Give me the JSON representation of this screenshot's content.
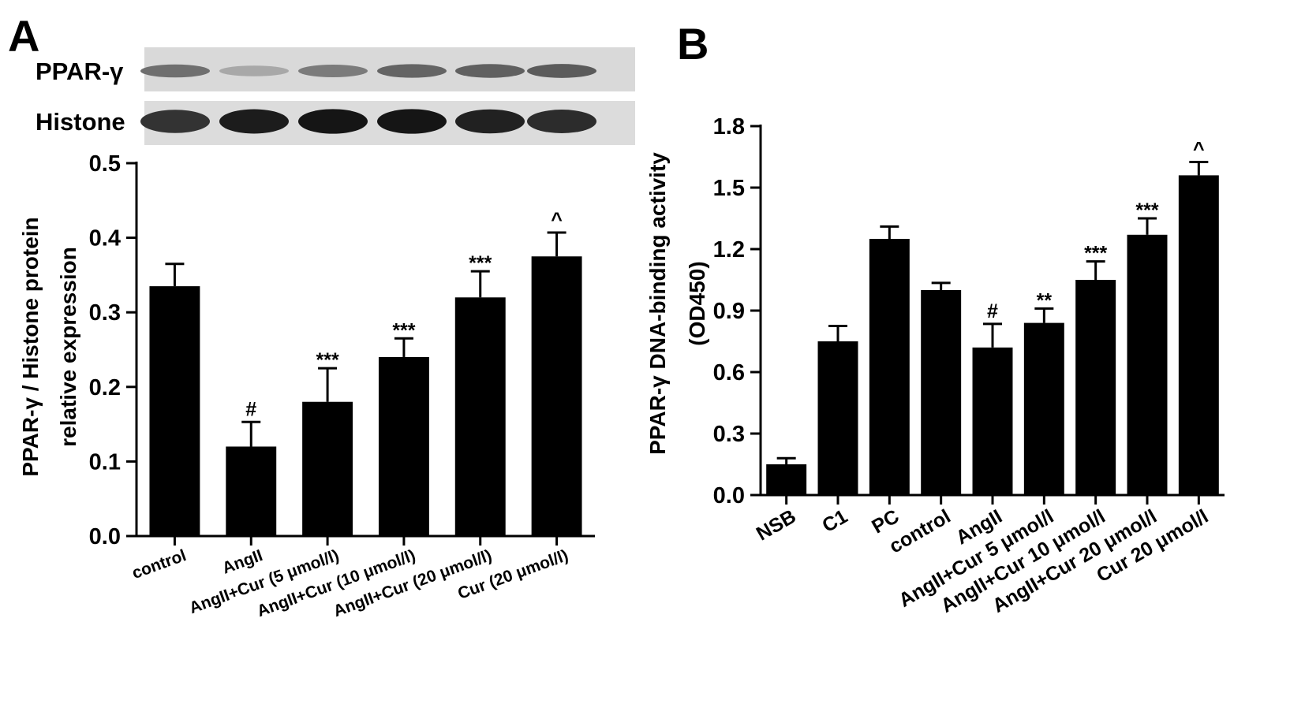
{
  "panels": {
    "a": {
      "letter": "A"
    },
    "b": {
      "letter": "B"
    }
  },
  "western_blot": {
    "rows": [
      {
        "label": "PPAR-γ",
        "band_intensity": [
          0.55,
          0.3,
          0.5,
          0.6,
          0.62,
          0.64
        ]
      },
      {
        "label": "Histone",
        "band_intensity": [
          0.82,
          0.92,
          0.95,
          0.95,
          0.9,
          0.85
        ]
      }
    ]
  },
  "colors": {
    "bar": "#000000",
    "background": "#ffffff",
    "blot_background": "#d9d9d9"
  },
  "chart_data": [
    {
      "id": "A",
      "type": "bar",
      "ylabel": "PPAR-γ / Histone protein\nrelative expression",
      "xlabel": "",
      "ylim": [
        0,
        0.5
      ],
      "yticks": [
        "0.0",
        "0.1",
        "0.2",
        "0.3",
        "0.4",
        "0.5"
      ],
      "categories": [
        "control",
        "AngII",
        "AngII+Cur (5 μmol/l)",
        "AngII+Cur (10 μmol/l)",
        "AngII+Cur (20 μmol/l)",
        "Cur (20 μmol/l)"
      ],
      "values": [
        0.335,
        0.12,
        0.18,
        0.24,
        0.32,
        0.375
      ],
      "errors": [
        0.03,
        0.033,
        0.045,
        0.025,
        0.035,
        0.032
      ],
      "annotations": [
        "",
        "#",
        "***",
        "***",
        "***",
        "^"
      ]
    },
    {
      "id": "B",
      "type": "bar",
      "ylabel": "PPAR-γ DNA-binding activity\n(OD450)",
      "xlabel": "",
      "ylim": [
        0,
        1.8
      ],
      "yticks": [
        "0.0",
        "0.3",
        "0.6",
        "0.9",
        "1.2",
        "1.5",
        "1.8"
      ],
      "categories": [
        "NSB",
        "C1",
        "PC",
        "control",
        "AngII",
        "AngII+Cur 5 μmol/l",
        "AngII+Cur 10 μmol/l",
        "AngII+Cur 20 μmol/l",
        "Cur 20 μmol/l"
      ],
      "values": [
        0.15,
        0.75,
        1.25,
        1.0,
        0.72,
        0.84,
        1.05,
        1.27,
        1.56
      ],
      "errors": [
        0.03,
        0.075,
        0.06,
        0.035,
        0.115,
        0.07,
        0.09,
        0.08,
        0.065
      ],
      "annotations": [
        "",
        "",
        "",
        "",
        "#",
        "**",
        "***",
        "***",
        "^"
      ]
    }
  ]
}
